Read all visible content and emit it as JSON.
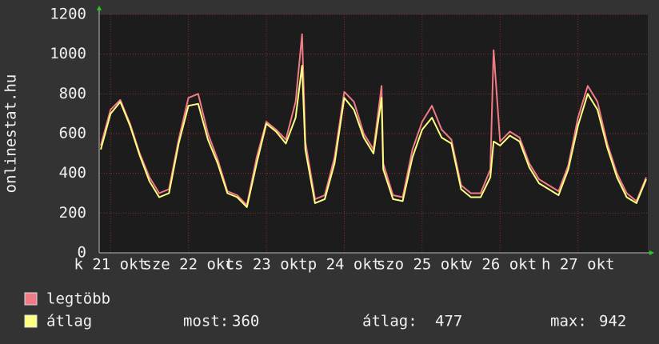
{
  "chart_data": {
    "type": "line",
    "y_label": "onlinestat.hu",
    "x": [
      -3,
      0,
      3,
      6,
      9,
      12,
      15,
      18,
      21,
      24,
      27,
      30,
      33,
      36,
      39,
      42,
      45,
      48,
      51,
      54,
      57,
      59,
      60,
      63,
      66,
      69,
      72,
      75,
      78,
      81,
      83.5,
      84,
      87,
      90,
      93,
      96,
      99,
      102,
      105,
      108,
      111,
      114,
      117,
      118,
      120,
      123,
      126,
      129,
      132,
      135,
      138,
      141,
      144,
      147,
      150,
      153,
      156,
      159,
      162,
      165
    ],
    "xlim": [
      -3.5,
      165.5
    ],
    "xticks": [
      {
        "value": 0,
        "label": "k 21 okt"
      },
      {
        "value": 24,
        "label": "sze 22 okt"
      },
      {
        "value": 48,
        "label": "cs 23 okt"
      },
      {
        "value": 72,
        "label": "p 24 okt"
      },
      {
        "value": 96,
        "label": "szo 25 okt"
      },
      {
        "value": 120,
        "label": "v 26 okt"
      },
      {
        "value": 144,
        "label": "h 27 okt"
      }
    ],
    "ylim": [
      0,
      1200
    ],
    "yticks": [
      0,
      200,
      400,
      600,
      800,
      1000,
      1200
    ],
    "grid": true,
    "series": [
      {
        "name": "legtöbb",
        "color": "#f07a86",
        "values": [
          540,
          720,
          770,
          650,
          500,
          380,
          300,
          320,
          570,
          780,
          800,
          600,
          470,
          310,
          290,
          240,
          480,
          660,
          620,
          570,
          760,
          1100,
          560,
          270,
          290,
          480,
          810,
          760,
          600,
          520,
          840,
          450,
          290,
          280,
          520,
          660,
          740,
          620,
          570,
          340,
          300,
          300,
          420,
          1020,
          560,
          610,
          580,
          450,
          370,
          340,
          310,
          440,
          680,
          840,
          760,
          550,
          400,
          300,
          260,
          380
        ]
      },
      {
        "name": "átlag",
        "color": "#ffff80",
        "values": [
          520,
          700,
          760,
          640,
          490,
          360,
          280,
          300,
          550,
          740,
          750,
          570,
          450,
          300,
          280,
          230,
          450,
          650,
          610,
          550,
          680,
          942,
          520,
          250,
          270,
          450,
          780,
          720,
          580,
          500,
          780,
          420,
          270,
          260,
          480,
          620,
          680,
          580,
          550,
          320,
          280,
          280,
          380,
          560,
          540,
          590,
          560,
          430,
          350,
          320,
          290,
          420,
          640,
          800,
          720,
          530,
          380,
          280,
          250,
          370
        ]
      }
    ],
    "stats": [
      {
        "label": "most:",
        "value": 360
      },
      {
        "label": "átlag:",
        "value": 477
      },
      {
        "label": "max:",
        "value": 942
      }
    ]
  }
}
